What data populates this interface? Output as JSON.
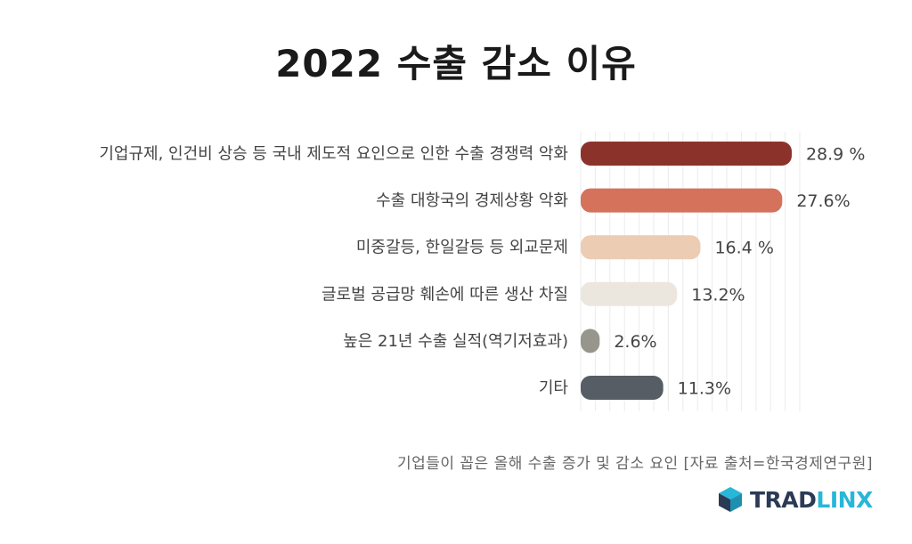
{
  "title": "2022 수출 감소 이유",
  "source": "기업들이 꼽은 올해 수출 증가 및 감소 요인 [자료 출처=한국경제연구원]",
  "logo": {
    "part1": "TRAD",
    "part2": "LINX",
    "icon": "cube-logo-icon"
  },
  "chart_data": {
    "type": "bar",
    "orientation": "horizontal",
    "categories": [
      "기업규제, 인건비 상승 등 국내 제도적 요인으로 인한 수출 경쟁력 악화",
      "수출 대항국의 경제상황 악화",
      "미중갈등, 한일갈등 등 외교문제",
      "글로벌 공급망 훼손에 따른 생산 차질",
      "높은 21년 수출 실적(역기저효과)",
      "기타"
    ],
    "values": [
      28.9,
      27.6,
      16.4,
      13.2,
      2.6,
      11.3
    ],
    "value_labels": [
      "28.9 %",
      "27.6%",
      "16.4 %",
      "13.2%",
      "2.6%",
      "11.3%"
    ],
    "colors": [
      "#8b332b",
      "#d4725c",
      "#ecccb2",
      "#ebe7df",
      "#96968c",
      "#565d64"
    ],
    "xlim": [
      0,
      30
    ],
    "grid": true
  }
}
